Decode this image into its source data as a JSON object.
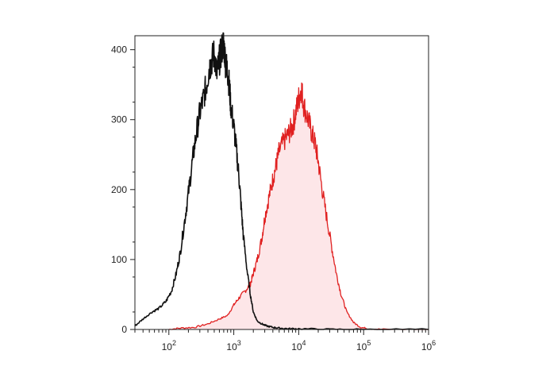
{
  "chart_data": {
    "type": "area",
    "title": "",
    "xlabel": "",
    "ylabel": "",
    "x_scale": "log",
    "xlim": [
      30,
      1000000
    ],
    "ylim": [
      0,
      420
    ],
    "grid": false,
    "legend": "none",
    "y_ticks": [
      0,
      100,
      200,
      300,
      400
    ],
    "x_ticks": [
      {
        "value": 100,
        "base": "10",
        "exp": "2"
      },
      {
        "value": 1000,
        "base": "10",
        "exp": "3"
      },
      {
        "value": 10000,
        "base": "10",
        "exp": "4"
      },
      {
        "value": 100000,
        "base": "10",
        "exp": "5"
      },
      {
        "value": 1000000,
        "base": "10",
        "exp": "6"
      }
    ],
    "series": [
      {
        "color": "#111111",
        "filled": false,
        "x": [
          30,
          40,
          55,
          70,
          90,
          110,
          130,
          150,
          175,
          200,
          230,
          260,
          300,
          340,
          380,
          420,
          460,
          500,
          550,
          600,
          650,
          700,
          750,
          800,
          850,
          900,
          1000,
          1100,
          1200,
          1300,
          1400,
          1600,
          1800,
          2000,
          2300,
          2700,
          3200,
          4000,
          5000,
          7000,
          10000,
          30000,
          100000,
          1000000
        ],
        "y": [
          5,
          15,
          25,
          30,
          40,
          55,
          80,
          110,
          155,
          195,
          240,
          275,
          310,
          330,
          350,
          375,
          385,
          395,
          365,
          385,
          400,
          410,
          380,
          370,
          350,
          320,
          290,
          255,
          220,
          175,
          135,
          85,
          50,
          25,
          12,
          8,
          5,
          3,
          2,
          1,
          1,
          0,
          0,
          0
        ]
      },
      {
        "color": "#e02020",
        "fill": "#fde6e8",
        "filled": true,
        "x": [
          100,
          150,
          250,
          400,
          600,
          800,
          1000,
          1200,
          1500,
          1800,
          2000,
          2300,
          2700,
          3000,
          3500,
          4000,
          4500,
          5000,
          6000,
          7000,
          8000,
          9000,
          10000,
          11000,
          12000,
          14000,
          16000,
          18000,
          20000,
          23000,
          27000,
          32000,
          38000,
          45000,
          55000,
          70000,
          90000,
          120000,
          200000,
          1000000
        ],
        "y": [
          0,
          2,
          3,
          8,
          15,
          20,
          35,
          45,
          55,
          65,
          80,
          100,
          130,
          160,
          190,
          215,
          235,
          255,
          270,
          280,
          290,
          310,
          330,
          345,
          320,
          300,
          280,
          265,
          240,
          200,
          160,
          120,
          80,
          50,
          25,
          10,
          3,
          1,
          0,
          0
        ]
      }
    ]
  }
}
